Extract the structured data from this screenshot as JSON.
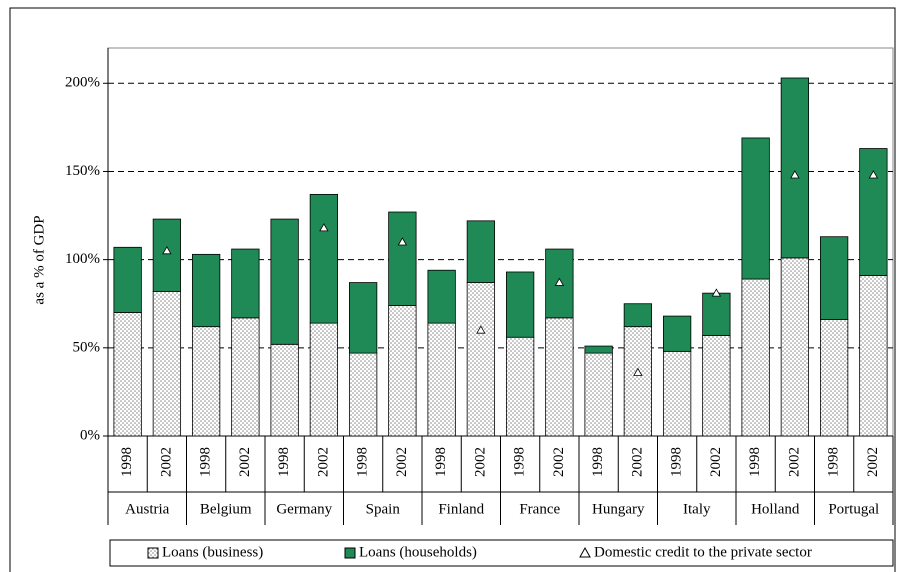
{
  "chart_data": {
    "type": "bar",
    "stacked": true,
    "y_label": "as a % of GDP",
    "categories": [
      "1998",
      "2002",
      "1998",
      "2002",
      "1998",
      "2002",
      "1998",
      "2002",
      "1998",
      "2002",
      "1998",
      "2002",
      "1998",
      "2002",
      "1998",
      "2002",
      "1998",
      "2002",
      "1998",
      "2002"
    ],
    "groups": [
      "Austria",
      "Belgium",
      "Germany",
      "Spain",
      "Finland",
      "France",
      "Hungary",
      "Italy",
      "Holland",
      "Portugal"
    ],
    "series": [
      {
        "name": "Loans (business)",
        "color": "#808080",
        "pattern": "dots",
        "values": [
          70,
          82,
          62,
          67,
          52,
          64,
          47,
          74,
          64,
          87,
          56,
          67,
          47,
          62,
          48,
          57,
          89,
          101,
          66,
          91
        ]
      },
      {
        "name": "Loans (households)",
        "color": "#1f8a56",
        "values": [
          37,
          41,
          41,
          39,
          71,
          73,
          40,
          53,
          30,
          35,
          37,
          39,
          4,
          13,
          20,
          24,
          80,
          102,
          47,
          72
        ]
      },
      {
        "name": "Domestic credit to the private sector",
        "color": "#ffffff",
        "type": "marker",
        "marker": "triangle",
        "values": [
          null,
          105,
          null,
          null,
          null,
          118,
          null,
          110,
          null,
          60,
          null,
          87,
          null,
          36,
          null,
          81,
          null,
          148,
          null,
          148
        ]
      }
    ],
    "ylim": [
      0,
      220
    ],
    "yticks": [
      {
        "value": 0,
        "label": "0%"
      },
      {
        "value": 50,
        "label": "50%"
      },
      {
        "value": 100,
        "label": "100%"
      },
      {
        "value": 150,
        "label": "150%"
      },
      {
        "value": 200,
        "label": "200%"
      }
    ],
    "grid": true,
    "legend": "bottom"
  }
}
